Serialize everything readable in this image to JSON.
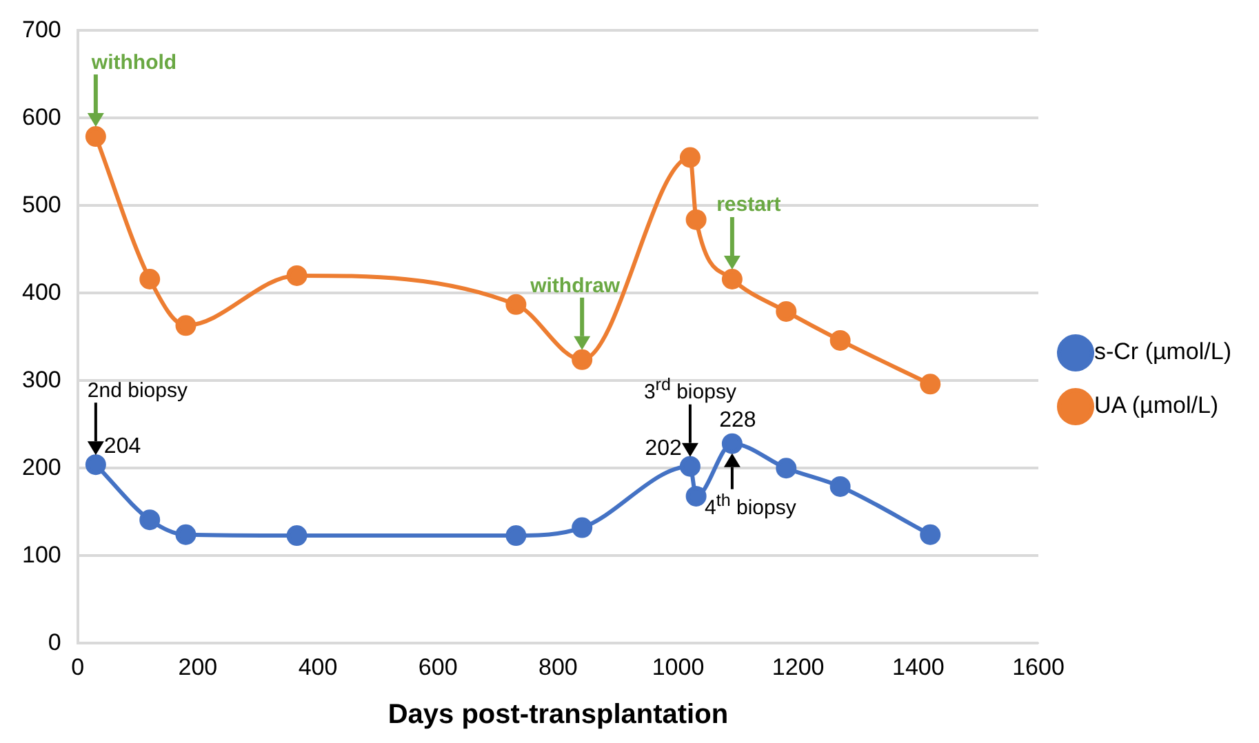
{
  "chart_data": {
    "type": "line",
    "xlabel": "Days post-transplantation",
    "x": [
      30,
      120,
      180,
      365,
      730,
      840,
      1020,
      1030,
      1090,
      1180,
      1270,
      1420
    ],
    "series": [
      {
        "name": "s-Cr (µmol/L)",
        "color": "#4472c4",
        "values": [
          204,
          141,
          124,
          123,
          123,
          132,
          202,
          168,
          228,
          200,
          179,
          124
        ],
        "value_labels": [
          "204",
          null,
          null,
          null,
          null,
          null,
          "202",
          null,
          "228",
          null,
          null,
          null
        ]
      },
      {
        "name": "UA (µmol/L)",
        "color": "#ed7d31",
        "values": [
          579,
          416,
          363,
          420,
          387,
          324,
          555,
          484,
          416,
          379,
          346,
          296
        ]
      }
    ],
    "annotations": [
      {
        "text": "withhold",
        "x": 30,
        "y": 579
      },
      {
        "text": "withdraw",
        "x": 840,
        "y": 324
      },
      {
        "text": "restart",
        "x": 1090,
        "y": 416
      },
      {
        "text": "2nd biopsy",
        "x": 30,
        "y": 204
      },
      {
        "text": "3$^{rd}$ biopsy",
        "x": 1020,
        "y": 202
      },
      {
        "text": "4$^{th}$ biopsy",
        "x": 1090,
        "y": 228
      }
    ],
    "xlim": [
      0,
      1600
    ],
    "xticks": [
      0,
      200,
      400,
      600,
      800,
      1000,
      1200,
      1400,
      1600
    ],
    "ylim": [
      0,
      700
    ],
    "yticks": [
      0,
      100,
      200,
      300,
      400,
      500,
      600,
      700
    ],
    "grid": "y",
    "legend": "right",
    "marker": "circle",
    "line_style": "solid"
  }
}
